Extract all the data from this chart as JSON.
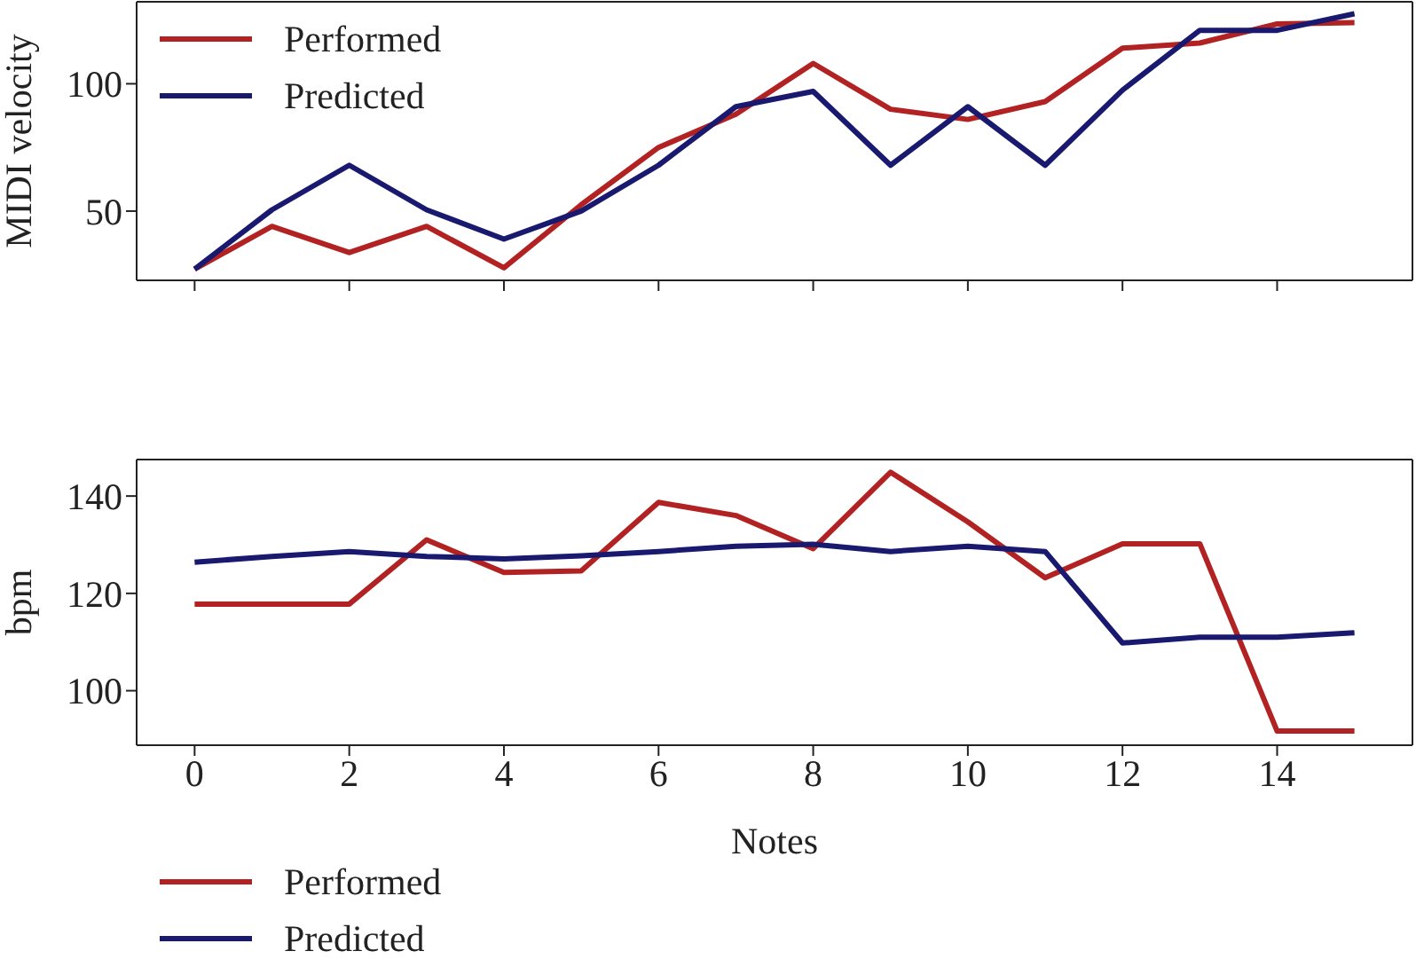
{
  "chart_data": [
    {
      "type": "line",
      "ylabel": "MIDI velocity",
      "x": [
        0,
        1,
        2,
        3,
        4,
        5,
        6,
        7,
        8,
        9,
        10,
        11,
        12,
        13,
        14,
        15
      ],
      "series": [
        {
          "name": "Performed",
          "color": "#b22222",
          "values": [
            27.2,
            44,
            33.7,
            44,
            27.7,
            52.5,
            75,
            88,
            108,
            90,
            86,
            93,
            114,
            116,
            123.5,
            124
          ]
        },
        {
          "name": "Predicted",
          "color": "#191970",
          "values": [
            27.2,
            50.5,
            68,
            50.5,
            39,
            50,
            68,
            91,
            97,
            68,
            91,
            68,
            97.5,
            121,
            121,
            127.5
          ]
        }
      ],
      "xlim": [
        -0.75,
        15.75
      ],
      "xticks": [
        {
          "value": 0,
          "label": null
        },
        {
          "value": 2,
          "label": null
        },
        {
          "value": 4,
          "label": null
        },
        {
          "value": 6,
          "label": null
        },
        {
          "value": 8,
          "label": null
        },
        {
          "value": 10,
          "label": null
        },
        {
          "value": 12,
          "label": null
        },
        {
          "value": 14,
          "label": null
        }
      ],
      "ylim": [
        22.8,
        132.2
      ],
      "yticks": [
        50,
        100
      ],
      "tick_labels": "y",
      "legend": "top left",
      "grid": false
    },
    {
      "type": "line",
      "xlabel": "Notes",
      "ylabel": "bpm",
      "x": [
        0,
        1,
        2,
        3,
        4,
        5,
        6,
        7,
        8,
        9,
        10,
        11,
        12,
        13,
        14,
        15
      ],
      "series": [
        {
          "name": "Performed",
          "color": "#b22222",
          "values": [
            117.8,
            117.8,
            117.8,
            131,
            124.3,
            124.6,
            138.7,
            136,
            129.2,
            144.9,
            134.7,
            123.2,
            130.2,
            130.2,
            91.7,
            91.7
          ]
        },
        {
          "name": "Predicted",
          "color": "#191970",
          "values": [
            126.4,
            127.6,
            128.6,
            127.6,
            127.1,
            127.7,
            128.6,
            129.7,
            130.1,
            128.6,
            129.7,
            128.6,
            109.8,
            111,
            111,
            111.9
          ]
        }
      ],
      "xlim": [
        -0.75,
        15.75
      ],
      "xticks": [
        0,
        2,
        4,
        6,
        8,
        10,
        12,
        14
      ],
      "ylim": [
        88.8,
        147.5
      ],
      "yticks": [
        100,
        120,
        140
      ],
      "legend": "bottom left",
      "grid": false
    }
  ]
}
